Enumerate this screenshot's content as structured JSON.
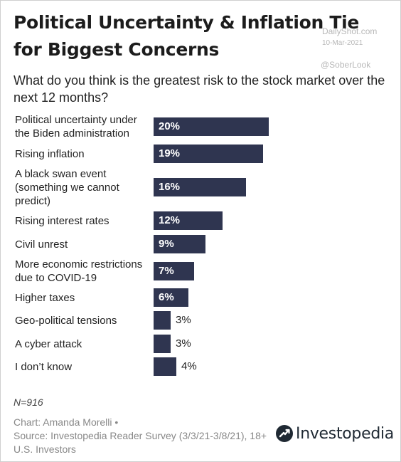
{
  "header": {
    "title": "Political Uncertainty & Inflation Tie for Biggest Concerns",
    "subtitle": "What do you think is the greatest risk to the stock market over the next 12 months?"
  },
  "watermark": {
    "source": "DailyShot.com",
    "date": "10-Mar-2021",
    "handle": "@SoberLook"
  },
  "chart_data": {
    "type": "bar",
    "orientation": "horizontal",
    "categories": [
      "Political uncertainty under the Biden administration",
      "Rising inflation",
      "A black swan event (something we cannot predict)",
      "Rising interest rates",
      "Civil unrest",
      "More economic restrictions due to COVID-19",
      "Higher taxes",
      "Geo-political tensions",
      "A cyber attack",
      "I don’t know"
    ],
    "values": [
      20,
      19,
      16,
      12,
      9,
      7,
      6,
      3,
      3,
      4
    ],
    "value_labels": [
      "20%",
      "19%",
      "16%",
      "12%",
      "9%",
      "7%",
      "6%",
      "3%",
      "3%",
      "4%"
    ],
    "bar_color": "#2f3550",
    "grid": false
  },
  "footer": {
    "sample": "N=916",
    "credit": "Chart: Amanda Morelli •",
    "source": "Source: Investopedia Reader Survey (3/3/21-3/8/21), 18+ U.S. Investors",
    "brand": "Investopedia"
  }
}
